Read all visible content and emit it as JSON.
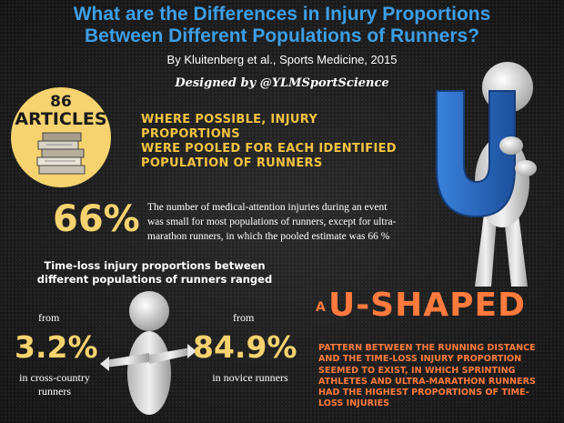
{
  "header": {
    "title_line1": "What are the Differences in Injury Proportions",
    "title_line2": "Between Different Populations of Runners?",
    "subtitle": "By Kluitenberg et al., Sports Medicine, 2015",
    "credit": "Designed by @YLMSportScience"
  },
  "articles_badge": {
    "count": "86",
    "label": "ARTICLES",
    "icon": "stack-of-books-icon"
  },
  "pooled_statement": {
    "line1": "Where possible, injury proportions",
    "line2": "were pooled for each identified",
    "line3": "population of runners"
  },
  "medical_attention": {
    "percentage": "66%",
    "line1": "The number of medical-attention injuries during an event",
    "line2": "was small for most populations of runners, except for ultra-",
    "line3": "marathon runners, in which the pooled estimate was 66 %"
  },
  "time_loss": {
    "heading_line1": "Time-loss injury proportions between",
    "heading_line2": "different populations of runners ranged",
    "low": {
      "prefix": "from",
      "value": "3.2%",
      "caption_line1": "in cross-country",
      "caption_line2": "runners"
    },
    "high": {
      "prefix": "from",
      "value": "84.9%",
      "caption": "in novice runners"
    }
  },
  "u_shaped": {
    "article": "A",
    "headline": "U-SHAPED",
    "line1": "Pattern between the running distance",
    "line2": "and the time-loss injury proportion",
    "line3": "seemed to exist, in which sprinting",
    "line4": "athletes and ultra-marathon runners",
    "line5": "had the highest proportions of time-",
    "line6": "loss injuries"
  },
  "illustrations": {
    "letter_figure": "U",
    "letter_color": "#2f6ec9",
    "pointing_figure": "pointing-figure-icon"
  },
  "colors": {
    "title": "#3d9fe6",
    "accent_yellow": "#f6d36f",
    "accent_orange": "#ff7a3d",
    "background": "#1e1e1e"
  }
}
